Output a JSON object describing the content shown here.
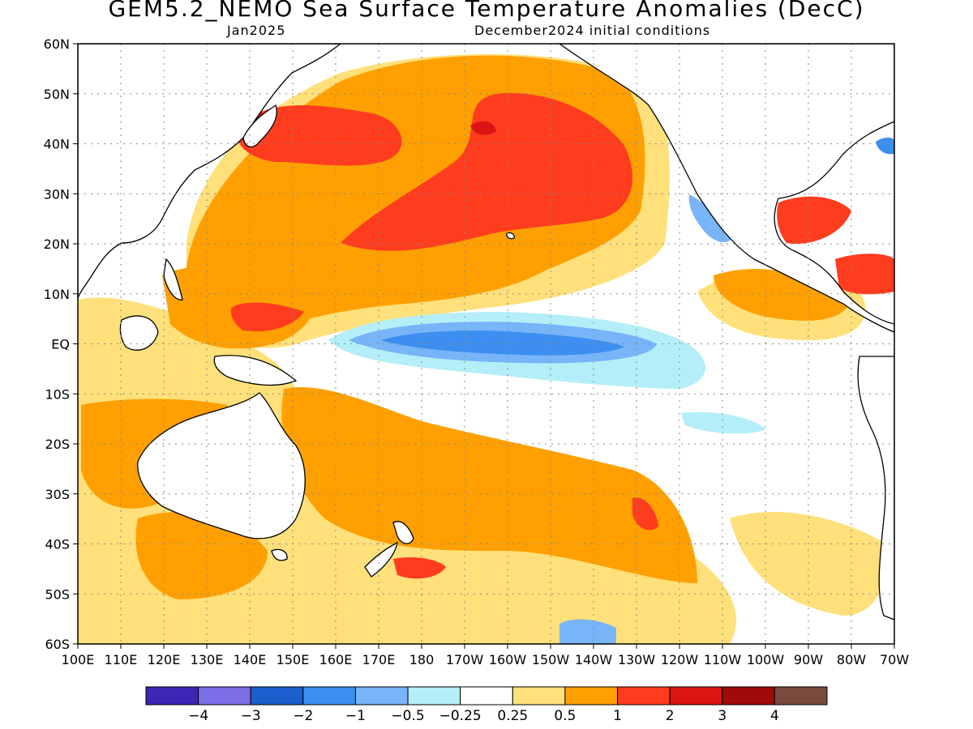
{
  "header": {
    "title": "GEM5.2_NEMO Sea Surface Temperature Anomalies (DecC)",
    "valid_month": "Jan2025",
    "initial_conditions": "December2024 initial conditions"
  },
  "map": {
    "region": "Pacific Ocean",
    "lat_ticks": [
      "60N",
      "50N",
      "40N",
      "30N",
      "20N",
      "10N",
      "EQ",
      "10S",
      "20S",
      "30S",
      "40S",
      "50S",
      "60S"
    ],
    "lon_ticks": [
      "100E",
      "110E",
      "120E",
      "130E",
      "140E",
      "150E",
      "160E",
      "170E",
      "180",
      "170W",
      "160W",
      "150W",
      "140W",
      "130W",
      "120W",
      "110W",
      "100W",
      "90W",
      "80W",
      "70W"
    ],
    "lat_range": [
      -60,
      60
    ],
    "lon_range": [
      100,
      290
    ],
    "grid": true
  },
  "colorbar": {
    "labels": [
      "−4",
      "−3",
      "−2",
      "−1",
      "−0.5",
      "−0.25",
      "0.25",
      "0.5",
      "1",
      "2",
      "3",
      "4"
    ],
    "colors": [
      "#3d26b4",
      "#7b6ee6",
      "#1a5fcc",
      "#3c8ff0",
      "#78b4f8",
      "#b4eef8",
      "#ffffff",
      "#ffe07a",
      "#ffa000",
      "#ff3c1e",
      "#dc1414",
      "#a00a0a",
      "#7a4a3e"
    ]
  }
}
